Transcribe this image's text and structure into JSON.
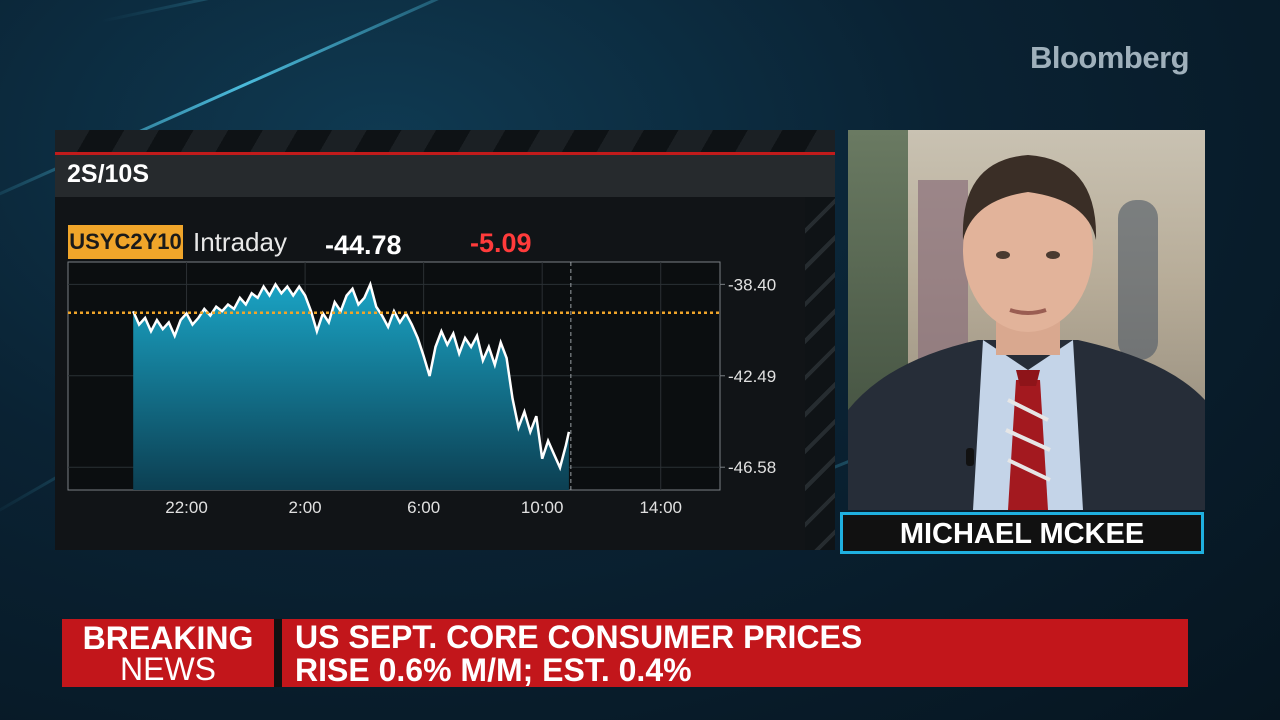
{
  "brand": {
    "logo_text": "Bloomberg"
  },
  "chart_panel": {
    "title": "2S/10S",
    "ticker": "USYC2Y10",
    "period": "Intraday",
    "value": "-44.78",
    "change": "-5.09",
    "colors": {
      "ticker_bg": "#f0a52a",
      "change": "#ff3b3b",
      "area_top": "#1aa3c4",
      "reference_line": "#f0a52a"
    }
  },
  "chart_data": {
    "type": "area",
    "x_tick_labels": [
      "22:00",
      "2:00",
      "6:00",
      "10:00",
      "14:00"
    ],
    "y_tick_labels": [
      "-38.40",
      "-42.49",
      "-46.58"
    ],
    "ylim": [
      -47.6,
      -37.4
    ],
    "x_range_hours": [
      18,
      26.2
    ],
    "reference_value": -39.67,
    "series": [
      {
        "values": [
          [
            20.0,
            -39.6
          ],
          [
            20.15,
            -40.2
          ],
          [
            20.3,
            -39.9
          ],
          [
            20.45,
            -40.5
          ],
          [
            20.6,
            -40.0
          ],
          [
            20.75,
            -40.4
          ],
          [
            20.9,
            -40.1
          ],
          [
            21.05,
            -40.7
          ],
          [
            21.2,
            -40.0
          ],
          [
            21.4,
            -39.7
          ],
          [
            21.6,
            -40.2
          ],
          [
            21.8,
            -39.9
          ],
          [
            22.0,
            -39.5
          ],
          [
            22.2,
            -39.8
          ],
          [
            22.4,
            -39.4
          ],
          [
            22.6,
            -39.6
          ],
          [
            22.8,
            -39.3
          ],
          [
            23.0,
            -39.5
          ],
          [
            23.2,
            -39.0
          ],
          [
            23.4,
            -39.3
          ],
          [
            23.6,
            -38.8
          ],
          [
            23.8,
            -39.0
          ],
          [
            24.0,
            -38.5
          ],
          [
            24.2,
            -38.9
          ],
          [
            24.4,
            -38.4
          ],
          [
            24.6,
            -38.8
          ],
          [
            24.8,
            -38.5
          ],
          [
            25.0,
            -38.9
          ],
          [
            25.2,
            -38.5
          ],
          [
            25.4,
            -38.8
          ],
          [
            25.6,
            -38.4
          ],
          [
            25.8,
            -38.9
          ],
          [
            26.0,
            -38.5
          ],
          [
            26.2,
            -39.0
          ]
        ]
      }
    ],
    "series_full": [
      [
        -3.8,
        -39.6
      ],
      [
        -3.6,
        -40.2
      ],
      [
        -3.4,
        -39.9
      ],
      [
        -3.2,
        -40.5
      ],
      [
        -3.0,
        -40.0
      ],
      [
        -2.8,
        -40.4
      ],
      [
        -2.6,
        -40.1
      ],
      [
        -2.4,
        -40.7
      ],
      [
        -2.2,
        -40.0
      ],
      [
        -2.0,
        -39.7
      ],
      [
        -1.8,
        -40.2
      ],
      [
        -1.6,
        -39.9
      ],
      [
        -1.4,
        -39.5
      ],
      [
        -1.2,
        -39.8
      ],
      [
        -1.0,
        -39.4
      ],
      [
        -0.8,
        -39.6
      ],
      [
        -0.6,
        -39.3
      ],
      [
        -0.4,
        -39.5
      ],
      [
        -0.2,
        -39.0
      ],
      [
        0.0,
        -39.3
      ],
      [
        0.2,
        -38.8
      ],
      [
        0.4,
        -39.0
      ],
      [
        0.6,
        -38.5
      ],
      [
        0.8,
        -38.9
      ],
      [
        1.0,
        -38.4
      ],
      [
        1.2,
        -38.8
      ],
      [
        1.4,
        -38.5
      ],
      [
        1.6,
        -38.9
      ],
      [
        1.8,
        -38.5
      ],
      [
        2.0,
        -38.9
      ],
      [
        2.2,
        -39.6
      ],
      [
        2.4,
        -40.5
      ],
      [
        2.6,
        -39.7
      ],
      [
        2.8,
        -40.1
      ],
      [
        3.0,
        -39.2
      ],
      [
        3.2,
        -39.6
      ],
      [
        3.4,
        -38.9
      ],
      [
        3.6,
        -38.6
      ],
      [
        3.8,
        -39.3
      ],
      [
        4.0,
        -39.0
      ],
      [
        4.2,
        -38.4
      ],
      [
        4.4,
        -39.4
      ],
      [
        4.6,
        -39.8
      ],
      [
        4.8,
        -40.3
      ],
      [
        5.0,
        -39.6
      ],
      [
        5.2,
        -40.1
      ],
      [
        5.4,
        -39.7
      ],
      [
        5.6,
        -40.2
      ],
      [
        5.8,
        -40.8
      ],
      [
        6.0,
        -41.6
      ],
      [
        6.2,
        -42.5
      ],
      [
        6.4,
        -41.2
      ],
      [
        6.6,
        -40.5
      ],
      [
        6.8,
        -41.1
      ],
      [
        7.0,
        -40.6
      ],
      [
        7.2,
        -41.5
      ],
      [
        7.4,
        -40.8
      ],
      [
        7.6,
        -41.2
      ],
      [
        7.8,
        -40.7
      ],
      [
        8.0,
        -41.8
      ],
      [
        8.2,
        -41.2
      ],
      [
        8.4,
        -42.0
      ],
      [
        8.6,
        -41.0
      ],
      [
        8.8,
        -41.7
      ],
      [
        9.0,
        -43.5
      ],
      [
        9.2,
        -44.8
      ],
      [
        9.4,
        -44.1
      ],
      [
        9.6,
        -45.0
      ],
      [
        9.8,
        -44.3
      ],
      [
        10.0,
        -46.2
      ],
      [
        10.2,
        -45.4
      ],
      [
        10.4,
        -46.0
      ],
      [
        10.6,
        -46.6
      ],
      [
        10.8,
        -45.6
      ],
      [
        10.9,
        -45.0
      ]
    ],
    "grid": true
  },
  "guest": {
    "name": "MICHAEL MCKEE"
  },
  "ticker_bar": {
    "label_line1": "BREAKING",
    "label_line2": "NEWS",
    "headline_line1": "US SEPT. CORE CONSUMER PRICES",
    "headline_line2": "RISE 0.6% M/M; EST. 0.4%"
  }
}
